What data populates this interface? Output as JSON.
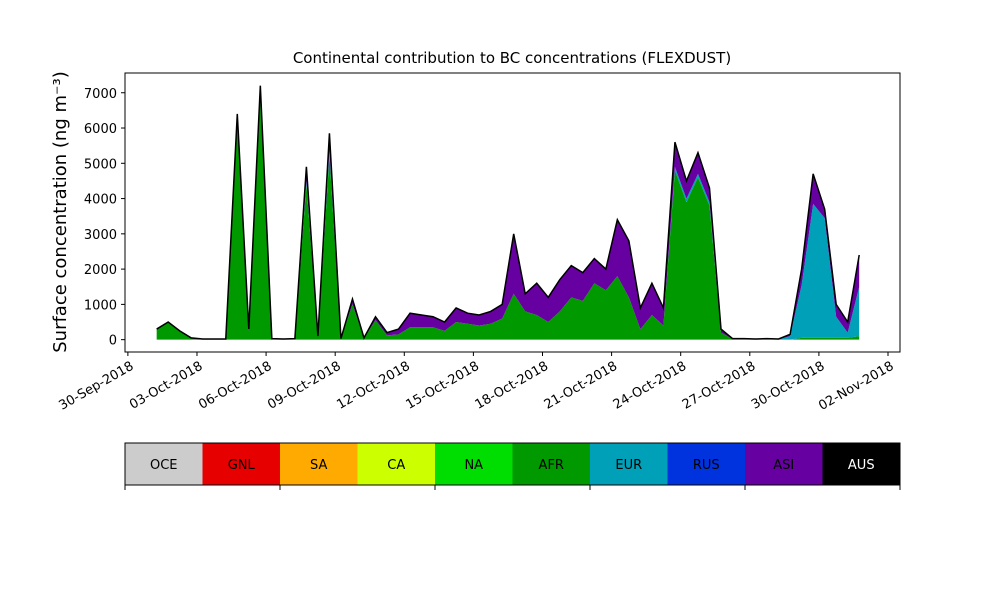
{
  "chart_data": {
    "type": "stacked_area",
    "title": "Continental contribution to BC concentrations (FLEXDUST)",
    "y_label": "Surface concentration (ng m⁻³)",
    "x": [
      "2018-10-01T06:00",
      "2018-10-01T18:00",
      "2018-10-02T06:00",
      "2018-10-02T18:00",
      "2018-10-03T06:00",
      "2018-10-03T18:00",
      "2018-10-04T06:00",
      "2018-10-04T18:00",
      "2018-10-05T06:00",
      "2018-10-05T18:00",
      "2018-10-06T06:00",
      "2018-10-06T18:00",
      "2018-10-07T06:00",
      "2018-10-07T18:00",
      "2018-10-08T06:00",
      "2018-10-08T18:00",
      "2018-10-09T06:00",
      "2018-10-09T18:00",
      "2018-10-10T06:00",
      "2018-10-10T18:00",
      "2018-10-11T06:00",
      "2018-10-11T18:00",
      "2018-10-12T06:00",
      "2018-10-12T18:00",
      "2018-10-13T06:00",
      "2018-10-13T18:00",
      "2018-10-14T06:00",
      "2018-10-14T18:00",
      "2018-10-15T06:00",
      "2018-10-15T18:00",
      "2018-10-16T06:00",
      "2018-10-16T18:00",
      "2018-10-17T06:00",
      "2018-10-17T18:00",
      "2018-10-18T06:00",
      "2018-10-18T18:00",
      "2018-10-19T06:00",
      "2018-10-19T18:00",
      "2018-10-20T06:00",
      "2018-10-20T18:00",
      "2018-10-21T06:00",
      "2018-10-21T18:00",
      "2018-10-22T06:00",
      "2018-10-22T18:00",
      "2018-10-23T06:00",
      "2018-10-23T18:00",
      "2018-10-24T06:00",
      "2018-10-24T18:00",
      "2018-10-25T06:00",
      "2018-10-25T18:00",
      "2018-10-26T06:00",
      "2018-10-26T18:00",
      "2018-10-27T06:00",
      "2018-10-27T18:00",
      "2018-10-28T06:00",
      "2018-10-28T18:00",
      "2018-10-29T06:00",
      "2018-10-29T18:00",
      "2018-10-30T06:00",
      "2018-10-30T18:00",
      "2018-10-31T06:00",
      "2018-10-31T18:00"
    ],
    "series": [
      {
        "name": "OCE",
        "color": "#cccccc",
        "values": [
          0,
          0,
          0,
          0,
          0,
          0,
          0,
          0,
          0,
          0,
          0,
          0,
          0,
          0,
          0,
          0,
          0,
          0,
          0,
          0,
          0,
          0,
          0,
          0,
          0,
          0,
          0,
          0,
          0,
          0,
          0,
          0,
          0,
          0,
          0,
          0,
          0,
          0,
          0,
          0,
          0,
          0,
          0,
          0,
          0,
          0,
          0,
          0,
          0,
          0,
          0,
          0,
          0,
          0,
          0,
          0,
          0,
          0,
          0,
          0,
          0,
          0
        ]
      },
      {
        "name": "GNL",
        "color": "#e60000",
        "values": [
          0,
          0,
          0,
          0,
          0,
          0,
          0,
          0,
          0,
          0,
          0,
          0,
          0,
          0,
          0,
          0,
          0,
          0,
          0,
          0,
          0,
          0,
          0,
          0,
          0,
          0,
          0,
          0,
          0,
          0,
          0,
          0,
          0,
          0,
          0,
          0,
          0,
          0,
          0,
          0,
          0,
          0,
          0,
          0,
          0,
          0,
          0,
          0,
          0,
          0,
          0,
          0,
          0,
          0,
          0,
          0,
          0,
          0,
          0,
          0,
          0,
          0
        ]
      },
      {
        "name": "SA",
        "color": "#ffaa00",
        "values": [
          0,
          0,
          0,
          0,
          0,
          0,
          0,
          0,
          0,
          0,
          0,
          0,
          0,
          0,
          0,
          0,
          0,
          0,
          0,
          0,
          0,
          0,
          0,
          0,
          0,
          0,
          0,
          0,
          0,
          0,
          0,
          0,
          0,
          0,
          0,
          0,
          0,
          0,
          0,
          0,
          0,
          0,
          0,
          0,
          0,
          0,
          0,
          0,
          0,
          0,
          0,
          0,
          0,
          0,
          0,
          0,
          0,
          0,
          0,
          0,
          0,
          0
        ]
      },
      {
        "name": "CA",
        "color": "#ccff00",
        "values": [
          0,
          0,
          0,
          0,
          0,
          0,
          0,
          0,
          0,
          0,
          0,
          0,
          0,
          0,
          0,
          0,
          0,
          0,
          0,
          0,
          0,
          0,
          0,
          0,
          0,
          0,
          0,
          0,
          0,
          0,
          0,
          0,
          0,
          0,
          0,
          0,
          0,
          0,
          0,
          0,
          0,
          0,
          0,
          0,
          0,
          0,
          0,
          0,
          0,
          0,
          0,
          0,
          0,
          0,
          0,
          0,
          0,
          0,
          0,
          0,
          0,
          0
        ]
      },
      {
        "name": "NA",
        "color": "#00dd00",
        "values": [
          0,
          0,
          0,
          0,
          0,
          0,
          0,
          0,
          0,
          0,
          0,
          0,
          0,
          0,
          0,
          0,
          0,
          0,
          0,
          0,
          0,
          0,
          0,
          0,
          0,
          0,
          0,
          0,
          0,
          0,
          0,
          0,
          0,
          0,
          0,
          0,
          0,
          0,
          0,
          0,
          0,
          0,
          0,
          0,
          0,
          0,
          0,
          0,
          0,
          0,
          0,
          0,
          0,
          0,
          0,
          0,
          0,
          0,
          0,
          0,
          0,
          0
        ]
      },
      {
        "name": "AFR",
        "color": "#009900",
        "values": [
          300,
          480,
          230,
          40,
          20,
          20,
          20,
          6100,
          250,
          6800,
          30,
          20,
          30,
          4400,
          80,
          5200,
          30,
          1000,
          40,
          550,
          120,
          150,
          350,
          350,
          350,
          250,
          500,
          450,
          400,
          450,
          600,
          1300,
          800,
          700,
          500,
          800,
          1200,
          1100,
          1600,
          1400,
          1800,
          1200,
          300,
          700,
          400,
          4800,
          3900,
          4600,
          3800,
          200,
          20,
          20,
          10,
          10,
          0,
          0,
          50,
          50,
          50,
          50,
          50,
          100
        ]
      },
      {
        "name": "EUR",
        "color": "#00a0b8",
        "values": [
          0,
          0,
          0,
          0,
          0,
          0,
          0,
          0,
          0,
          0,
          0,
          0,
          0,
          100,
          0,
          150,
          0,
          0,
          0,
          0,
          0,
          0,
          0,
          0,
          0,
          0,
          0,
          0,
          0,
          0,
          0,
          0,
          0,
          0,
          0,
          0,
          0,
          0,
          0,
          0,
          0,
          0,
          0,
          0,
          0,
          100,
          100,
          100,
          100,
          0,
          0,
          0,
          0,
          10,
          10,
          100,
          1500,
          3800,
          3400,
          600,
          150,
          1400
        ]
      },
      {
        "name": "RUS",
        "color": "#0033dd",
        "values": [
          0,
          0,
          0,
          0,
          0,
          0,
          0,
          0,
          0,
          0,
          0,
          0,
          0,
          0,
          0,
          0,
          0,
          0,
          0,
          0,
          0,
          0,
          0,
          0,
          0,
          0,
          0,
          0,
          0,
          0,
          0,
          0,
          0,
          0,
          0,
          0,
          0,
          0,
          0,
          0,
          0,
          0,
          0,
          0,
          0,
          0,
          0,
          0,
          0,
          0,
          0,
          0,
          0,
          0,
          0,
          0,
          0,
          0,
          0,
          0,
          0,
          0
        ]
      },
      {
        "name": "ASI",
        "color": "#6600a0",
        "values": [
          0,
          20,
          20,
          10,
          0,
          0,
          0,
          300,
          50,
          400,
          0,
          0,
          0,
          400,
          20,
          500,
          0,
          150,
          10,
          100,
          80,
          150,
          400,
          350,
          300,
          250,
          400,
          300,
          300,
          350,
          400,
          1700,
          500,
          900,
          700,
          900,
          900,
          800,
          700,
          600,
          1600,
          1600,
          600,
          900,
          500,
          700,
          500,
          600,
          400,
          100,
          10,
          10,
          10,
          10,
          10,
          50,
          450,
          850,
          250,
          350,
          300,
          900
        ]
      },
      {
        "name": "AUS",
        "color": "#000000",
        "values": [
          0,
          0,
          0,
          0,
          0,
          0,
          0,
          0,
          0,
          0,
          0,
          0,
          0,
          0,
          0,
          0,
          0,
          0,
          0,
          0,
          0,
          0,
          0,
          0,
          0,
          0,
          0,
          0,
          0,
          0,
          0,
          0,
          0,
          0,
          0,
          0,
          0,
          0,
          0,
          0,
          0,
          0,
          0,
          0,
          0,
          0,
          0,
          0,
          0,
          0,
          0,
          0,
          0,
          0,
          0,
          0,
          0,
          0,
          0,
          0,
          0,
          0
        ]
      }
    ],
    "xlim": [
      "2018-09-29T21:00",
      "2018-11-02T12:30"
    ],
    "xticks": [
      {
        "value": "2018-09-30",
        "label": "30-Sep-2018"
      },
      {
        "value": "2018-10-03",
        "label": "03-Oct-2018"
      },
      {
        "value": "2018-10-06",
        "label": "06-Oct-2018"
      },
      {
        "value": "2018-10-09",
        "label": "09-Oct-2018"
      },
      {
        "value": "2018-10-12",
        "label": "12-Oct-2018"
      },
      {
        "value": "2018-10-15",
        "label": "15-Oct-2018"
      },
      {
        "value": "2018-10-18",
        "label": "18-Oct-2018"
      },
      {
        "value": "2018-10-21",
        "label": "21-Oct-2018"
      },
      {
        "value": "2018-10-24",
        "label": "24-Oct-2018"
      },
      {
        "value": "2018-10-27",
        "label": "27-Oct-2018"
      },
      {
        "value": "2018-10-30",
        "label": "30-Oct-2018"
      },
      {
        "value": "2018-11-02",
        "label": "02-Nov-2018"
      }
    ],
    "ylim": [
      -350,
      7560
    ],
    "yticks": [
      0,
      1000,
      2000,
      3000,
      4000,
      5000,
      6000,
      7000
    ],
    "legend": "below"
  }
}
